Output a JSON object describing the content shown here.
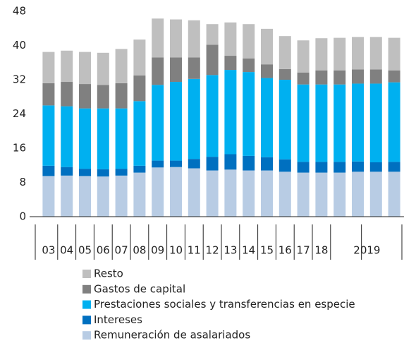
{
  "chart_data": {
    "type": "stacked_bar",
    "categories": [
      "03",
      "04",
      "05",
      "06",
      "07",
      "08",
      "09",
      "10",
      "11",
      "12",
      "13",
      "14",
      "15",
      "16",
      "17",
      "18",
      null,
      "2019",
      null,
      null
    ],
    "series": [
      {
        "name": "Remuneración de asalariados",
        "color": "#b8cce4",
        "values": [
          9.5,
          9.6,
          9.5,
          9.4,
          9.6,
          10.3,
          11.5,
          11.6,
          11.3,
          10.8,
          11,
          10.8,
          10.8,
          10.5,
          10.3,
          10.3,
          10.3,
          10.5,
          10.5,
          10.5
        ]
      },
      {
        "name": "Intereses",
        "color": "#0070c0",
        "values": [
          2.4,
          2.0,
          1.7,
          1.7,
          1.6,
          1.6,
          1.6,
          1.5,
          2.2,
          3.2,
          3.6,
          3.4,
          3.1,
          2.9,
          2.5,
          2.5,
          2.5,
          2.4,
          2.2,
          2.3
        ]
      },
      {
        "name": "Prestaciones sociales y transferencias en especie",
        "color": "#00b0f0",
        "values": [
          14.1,
          14.2,
          14.1,
          14.2,
          14.1,
          15.1,
          17.7,
          18.4,
          18.7,
          19.1,
          19.7,
          19.6,
          18.5,
          18.6,
          18.1,
          18.1,
          18.1,
          18.2,
          18.4,
          18.6
        ]
      },
      {
        "name": "Gastos de capital",
        "color": "#808080",
        "values": [
          5.2,
          5.7,
          5.7,
          5.5,
          5.9,
          6.0,
          6.4,
          5.7,
          5.0,
          7.1,
          3.3,
          3.2,
          3.2,
          2.5,
          2.8,
          3.3,
          3.3,
          3.3,
          3.3,
          2.8
        ]
      },
      {
        "name": "Resto",
        "color": "#bfbfbf",
        "values": [
          7.3,
          7.3,
          7.5,
          7.5,
          8.0,
          8.4,
          9.1,
          8.9,
          8.7,
          4.8,
          7.8,
          8.0,
          8.3,
          7.7,
          7.5,
          7.5,
          7.6,
          7.6,
          7.6,
          7.6
        ]
      }
    ],
    "ylim": [
      0,
      48
    ],
    "yticks": [
      0,
      8,
      16,
      24,
      32,
      40,
      48
    ],
    "grid": false
  }
}
